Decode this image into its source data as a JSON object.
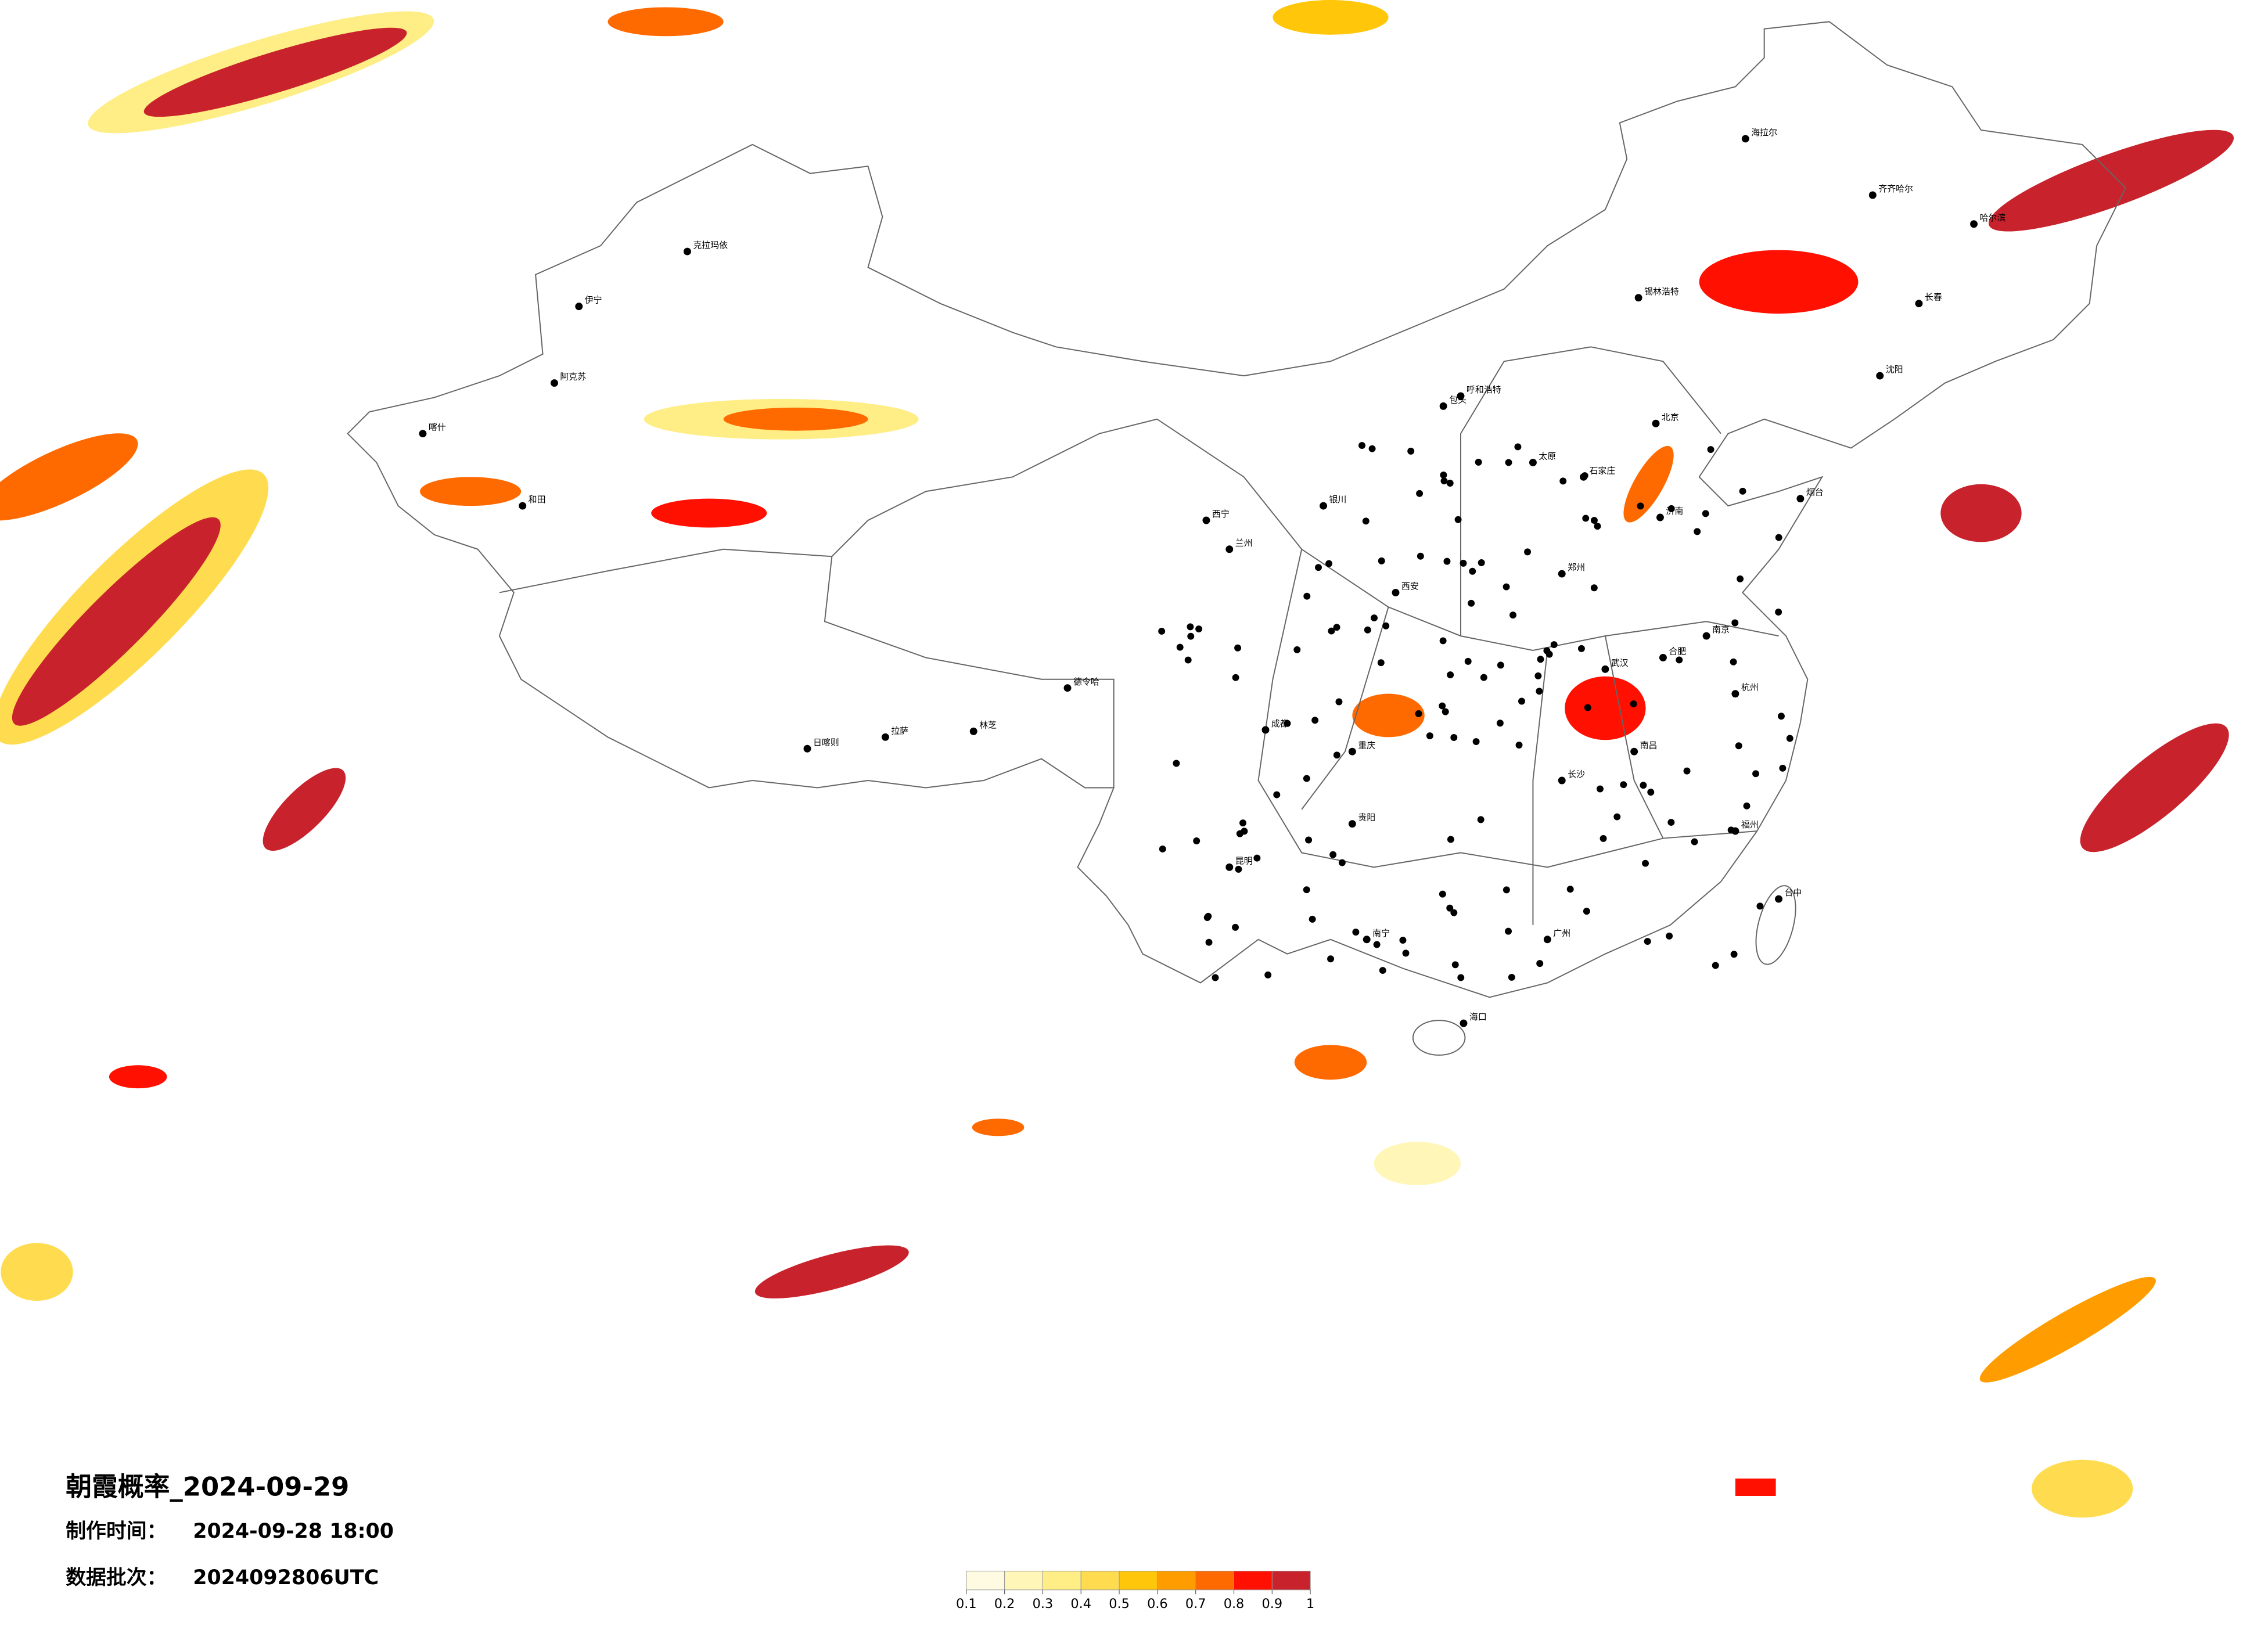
{
  "header": {
    "title": "朝霞概率_2024-09-29"
  },
  "info": [
    {
      "label": "制作时间：",
      "value": "2024-09-28 18:00"
    },
    {
      "label": "数据批次：",
      "value": "2024092806UTC"
    }
  ],
  "legend": {
    "colors": [
      "#fffbe3",
      "#fff6b8",
      "#ffee85",
      "#ffdc4f",
      "#ffc60a",
      "#ff9d00",
      "#ff6a00",
      "#ff1000",
      "#c8232c"
    ],
    "ticks": [
      0.1,
      0.2,
      0.3,
      0.4,
      0.5,
      0.6,
      0.7,
      0.8,
      0.9,
      1
    ]
  },
  "cities": [
    "克拉玛依",
    "伊宁",
    "阿克苏",
    "和田",
    "喀什",
    "日喀则",
    "拉萨",
    "林芝",
    "德令哈",
    "西宁",
    "兰州",
    "银川",
    "呼和浩特",
    "包头",
    "锡林浩特",
    "海拉尔",
    "齐齐哈尔",
    "哈尔滨",
    "长春",
    "沈阳",
    "北京",
    "石家庄",
    "太原",
    "济南",
    "郑州",
    "西安",
    "武汉",
    "南昌",
    "长沙",
    "成都",
    "重庆",
    "贵阳",
    "昆明",
    "南宁",
    "广州",
    "福州",
    "杭州",
    "南京",
    "合肥",
    "海口",
    "台中",
    "烟台"
  ]
}
